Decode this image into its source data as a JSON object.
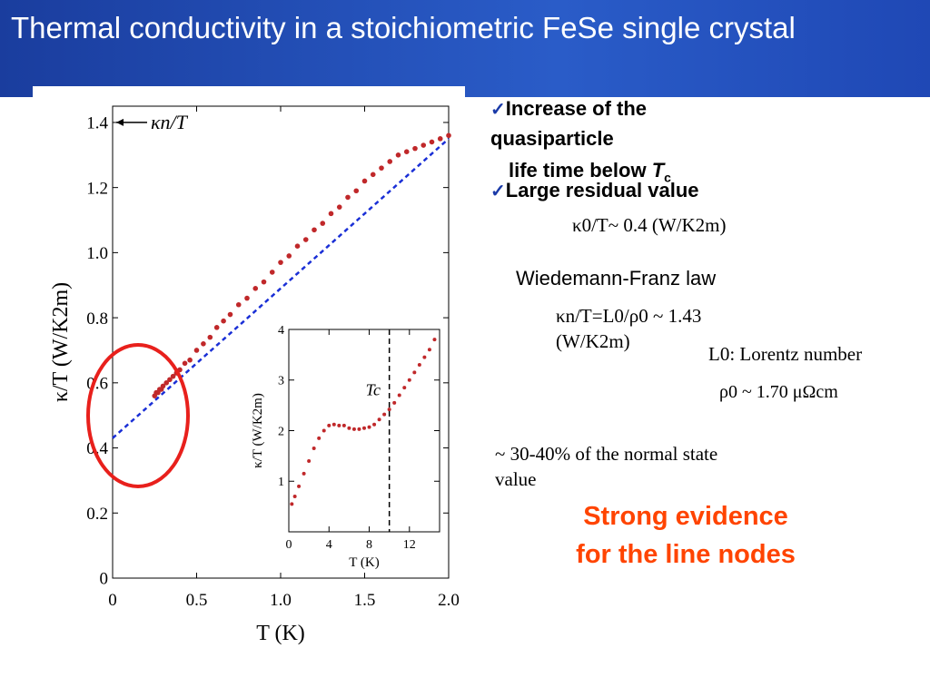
{
  "slide": {
    "title": "Thermal conductivity in a stoichiometric FeSe single crystal"
  },
  "bullets": {
    "check_glyph": "✓",
    "b1_line1": "Increase of the quasiparticle",
    "b1_line2": "life time below",
    "b1_tc_symbol": "T",
    "b1_tc_sub": "c",
    "b2": "Large residual value"
  },
  "notes": {
    "kappa0_over_T": "κ0/T~ 0.4 (W/K2m)",
    "wf_law": "Wiedemann-Franz law",
    "kappan_formula": "κn/T=L0/ρ0 ~ 1.43 (W/K2m)",
    "lorentz": "L0: Lorentz number",
    "rho0": "ρ0 ~ 1.70 μΩcm",
    "fraction_line1": "~ 30-40% of the normal state",
    "fraction_line2": "value",
    "conclusion_line1": "Strong evidence",
    "conclusion_line2": "for the line nodes"
  },
  "colors": {
    "title_bg": "#1f4ab8",
    "data_points": "#c0282a",
    "fit_line": "#1a2fd6",
    "circle": "#e8201c",
    "conclusion": "#ff4400"
  },
  "chart_data": [
    {
      "type": "scatter",
      "title": "",
      "xlabel": "T (K)",
      "ylabel": "κ/T (W/K2m)",
      "xlim": [
        0,
        2.0
      ],
      "ylim": [
        0,
        1.45
      ],
      "xticks": [
        "0",
        "0.5",
        "1.0",
        "1.5",
        "2.0"
      ],
      "yticks": [
        "0",
        "0.2",
        "0.4",
        "0.6",
        "0.8",
        "1.0",
        "1.2",
        "1.4"
      ],
      "annotation": "κn/T",
      "annotation_value": 1.4,
      "series": [
        {
          "x": [
            0.25,
            0.26,
            0.27,
            0.28,
            0.29,
            0.3,
            0.32,
            0.34,
            0.36,
            0.38,
            0.4,
            0.43,
            0.46,
            0.5,
            0.54,
            0.58,
            0.62,
            0.66,
            0.7,
            0.75,
            0.8,
            0.85,
            0.9,
            0.95,
            1.0,
            1.05,
            1.1,
            1.15,
            1.2,
            1.25,
            1.3,
            1.35,
            1.4,
            1.45,
            1.5,
            1.55,
            1.6,
            1.65,
            1.7,
            1.75,
            1.8,
            1.85,
            1.9,
            1.95,
            2.0
          ],
          "y": [
            0.56,
            0.57,
            0.57,
            0.58,
            0.58,
            0.59,
            0.6,
            0.61,
            0.62,
            0.63,
            0.64,
            0.66,
            0.67,
            0.7,
            0.72,
            0.74,
            0.77,
            0.79,
            0.81,
            0.84,
            0.86,
            0.89,
            0.91,
            0.94,
            0.97,
            0.99,
            1.02,
            1.04,
            1.07,
            1.09,
            1.12,
            1.14,
            1.17,
            1.19,
            1.22,
            1.24,
            1.26,
            1.28,
            1.3,
            1.31,
            1.32,
            1.33,
            1.34,
            1.35,
            1.36
          ]
        },
        {
          "name": "",
          "type": "line",
          "x": [
            0,
            2.0
          ],
          "y": [
            0.43,
            1.35
          ]
        }
      ]
    },
    {
      "type": "scatter",
      "title": "",
      "xlabel": "T (K)",
      "ylabel": "κ/T (W/K2m)",
      "xlim": [
        0,
        15
      ],
      "ylim": [
        0,
        4
      ],
      "xticks": [
        "0",
        "4",
        "8",
        "12"
      ],
      "yticks": [
        "1",
        "2",
        "3",
        "4"
      ],
      "annotation": "Tc",
      "tc": 10,
      "series": [
        {
          "x": [
            0.3,
            0.6,
            1.0,
            1.5,
            2.0,
            2.5,
            3.0,
            3.5,
            4.0,
            4.5,
            5.0,
            5.5,
            6.0,
            6.5,
            7.0,
            7.5,
            8.0,
            8.5,
            9.0,
            9.5,
            10.0,
            10.5,
            11.0,
            11.5,
            12.0,
            12.5,
            13.0,
            13.5,
            14.0,
            14.5
          ],
          "y": [
            0.55,
            0.7,
            0.9,
            1.15,
            1.4,
            1.65,
            1.85,
            2.0,
            2.1,
            2.12,
            2.1,
            2.1,
            2.05,
            2.03,
            2.03,
            2.05,
            2.07,
            2.12,
            2.22,
            2.32,
            2.42,
            2.55,
            2.7,
            2.85,
            3.0,
            3.15,
            3.3,
            3.45,
            3.6,
            3.8
          ]
        }
      ]
    }
  ]
}
